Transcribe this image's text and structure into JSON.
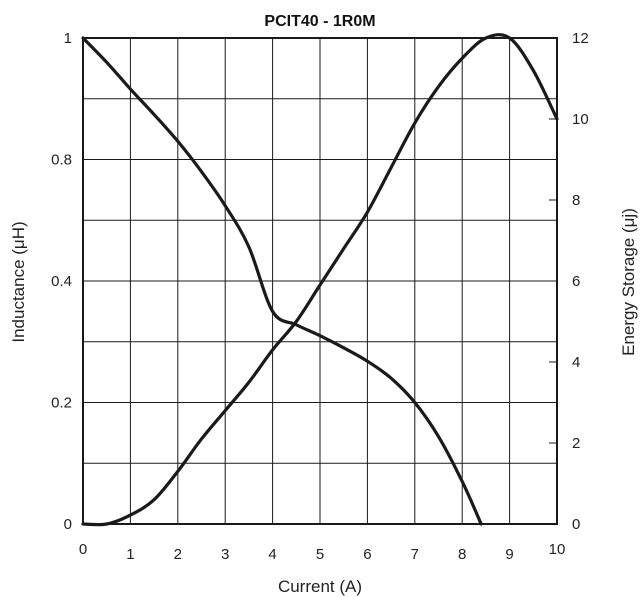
{
  "chart_data": {
    "type": "line",
    "title": "PCIT40 - 1R0M",
    "xlabel": "Current (A)",
    "ylabel_left": "Inductance (μH)",
    "ylabel_right": "Energy Storage (μj)",
    "xlim": [
      0,
      10
    ],
    "ylim_left_positions": [
      0,
      4
    ],
    "ylim_right": [
      0,
      12
    ],
    "x_ticks": [
      "0",
      "1",
      "2",
      "3",
      "4",
      "5",
      "6",
      "7",
      "8",
      "9",
      "10"
    ],
    "y_left_ticks": [
      "0",
      "0.2",
      "0.4",
      "0.8",
      "1"
    ],
    "y_right_ticks": [
      "0",
      "2",
      "4",
      "6",
      "8",
      "10",
      "12"
    ],
    "grid": true,
    "line_color": "#1a1a1a",
    "series": [
      {
        "axis": "left",
        "x": [
          0,
          0.5,
          1,
          1.5,
          2,
          2.5,
          3,
          3.5,
          4,
          4.5,
          5,
          5.5,
          6,
          6.5,
          7,
          7.5,
          8,
          8.4
        ],
        "positions": [
          4,
          3.8,
          3.58,
          3.37,
          3.15,
          2.9,
          2.62,
          2.28,
          1.75,
          1.64,
          1.55,
          1.45,
          1.34,
          1.2,
          1.0,
          0.72,
          0.35,
          0
        ],
        "values": [
          1,
          0.95,
          0.895,
          0.8425,
          0.7875,
          0.725,
          0.655,
          0.57,
          0.35,
          0.328,
          0.31,
          0.29,
          0.268,
          0.24,
          0.2,
          0.144,
          0.07,
          0
        ]
      },
      {
        "axis": "right",
        "x": [
          0,
          0.5,
          1,
          1.5,
          2,
          2.5,
          3,
          3.5,
          4,
          4.5,
          5,
          5.5,
          6,
          6.5,
          7,
          7.5,
          8,
          8.5,
          9,
          9.5,
          10
        ],
        "values": [
          0,
          0,
          0.22,
          0.6,
          1.3,
          2.1,
          2.8,
          3.5,
          4.3,
          5.0,
          5.9,
          6.8,
          7.7,
          8.8,
          9.9,
          10.8,
          11.5,
          12.0,
          12.0,
          11.2,
          10.0
        ]
      }
    ]
  }
}
